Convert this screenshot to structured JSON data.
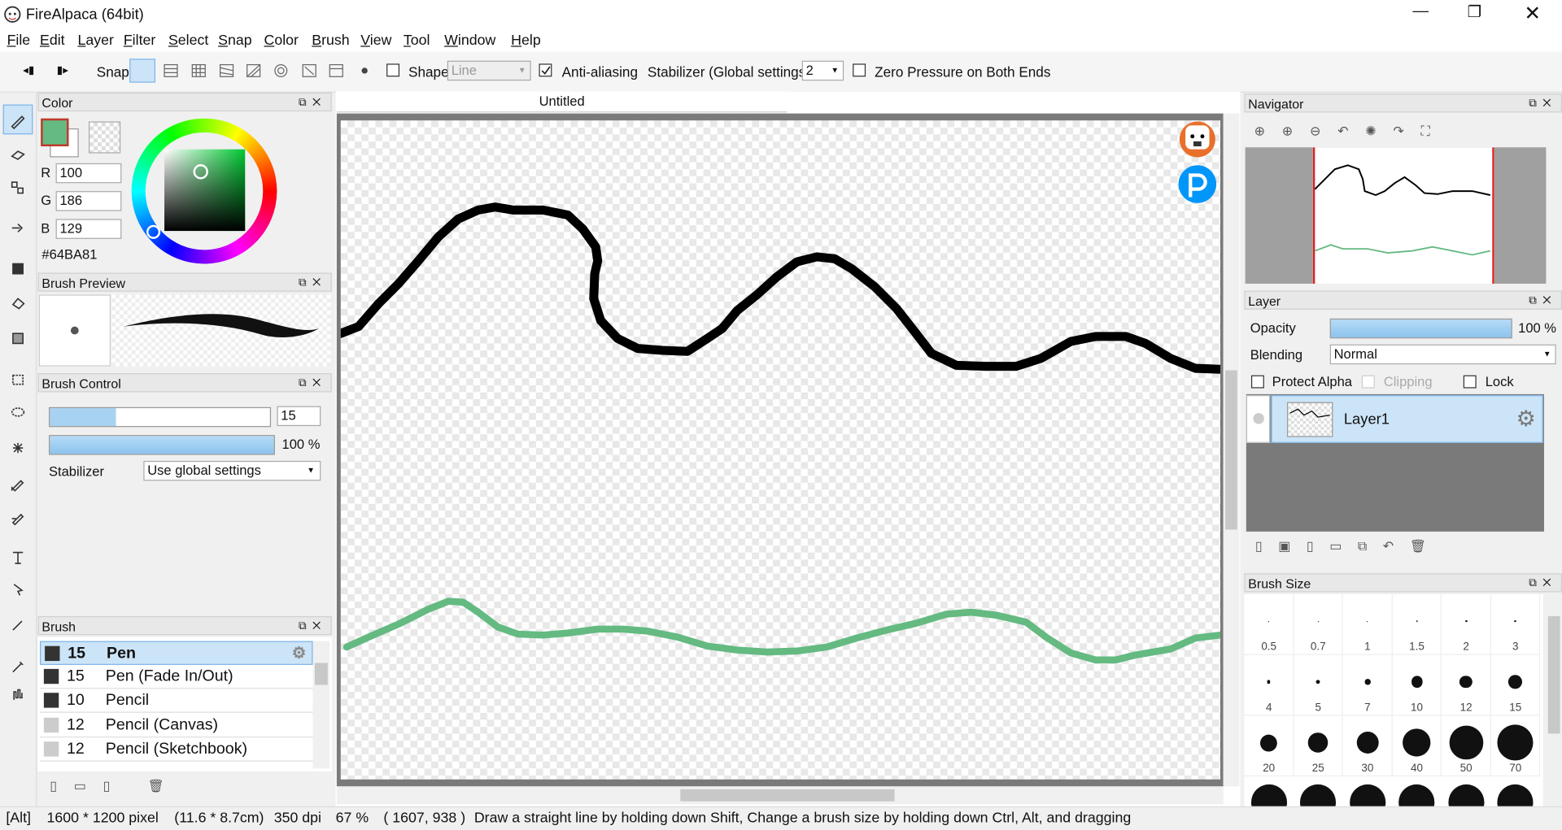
{
  "title_bar": {
    "title": "FireAlpaca (64bit)"
  },
  "menu": [
    "File",
    "Edit",
    "Layer",
    "Filter",
    "Select",
    "Snap",
    "Color",
    "Brush",
    "View",
    "Tool",
    "Window",
    "Help"
  ],
  "toolbar": {
    "snap": "Snap",
    "shape": "Shape",
    "shape_value": "Line",
    "anti_aliasing": "Anti-aliasing",
    "stabilizer": "Stabilizer (Global settings)",
    "stabilizer_value": "2",
    "zero_pressure": "Zero Pressure on Both Ends"
  },
  "color_panel": {
    "title": "Color",
    "r_label": "R",
    "r": "100",
    "g_label": "G",
    "g": "186",
    "b_label": "B",
    "b": "129",
    "hex": "#64BA81"
  },
  "brush_preview": {
    "title": "Brush Preview"
  },
  "brush_control": {
    "title": "Brush Control",
    "size": "15",
    "opacity": "100 %",
    "stabilizer_label": "Stabilizer",
    "stabilizer_value": "Use global settings"
  },
  "brush_panel": {
    "title": "Brush",
    "items": [
      {
        "size": "15",
        "name": "Pen"
      },
      {
        "size": "15",
        "name": "Pen (Fade In/Out)"
      },
      {
        "size": "10",
        "name": "Pencil"
      },
      {
        "size": "12",
        "name": "Pencil (Canvas)"
      },
      {
        "size": "12",
        "name": "Pencil (Sketchbook)"
      }
    ]
  },
  "canvas": {
    "tab": "Untitled"
  },
  "navigator": {
    "title": "Navigator"
  },
  "layer_panel": {
    "title": "Layer",
    "opacity_label": "Opacity",
    "opacity": "100 %",
    "blending_label": "Blending",
    "blending": "Normal",
    "protect_alpha": "Protect Alpha",
    "clipping": "Clipping",
    "lock": "Lock",
    "layer_name": "Layer1"
  },
  "brush_size": {
    "title": "Brush Size",
    "sizes": [
      "0.5",
      "0.7",
      "1",
      "1.5",
      "2",
      "3",
      "4",
      "5",
      "7",
      "10",
      "12",
      "15",
      "20",
      "25",
      "30",
      "40",
      "50",
      "70"
    ]
  },
  "status_bar": [
    "[Alt]",
    "1600 * 1200 pixel",
    "(11.6 * 8.7cm)",
    "350 dpi",
    "67 %",
    "( 1607, 938 )",
    "Draw a straight line by holding down Shift, Change a brush size by holding down Ctrl, Alt, and dragging"
  ]
}
